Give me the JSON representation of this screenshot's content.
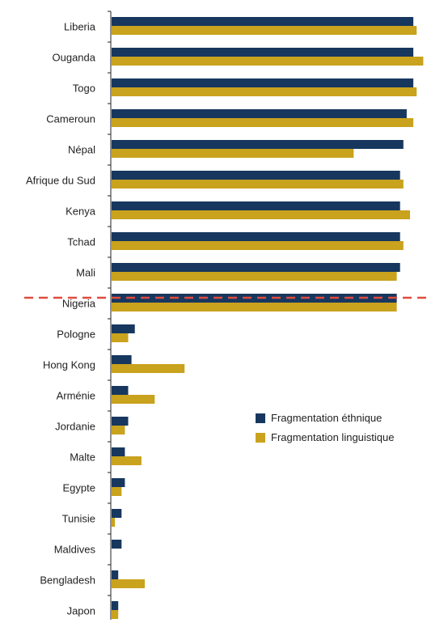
{
  "chart_data": {
    "type": "bar",
    "orientation": "horizontal",
    "categories": [
      "Liberia",
      "Ouganda",
      "Togo",
      "Cameroun",
      "Népal",
      "Afrique du Sud",
      "Kenya",
      "Tchad",
      "Mali",
      "Nigeria",
      "Pologne",
      "Hong Kong",
      "Arménie",
      "Jordanie",
      "Malte",
      "Egypte",
      "Tunisie",
      "Maldives",
      "Bengladesh",
      "Japon"
    ],
    "series": [
      {
        "name": "Fragmentation éthnique",
        "color": "#17375e",
        "values": [
          0.91,
          0.91,
          0.91,
          0.89,
          0.88,
          0.87,
          0.87,
          0.87,
          0.87,
          0.86,
          0.07,
          0.06,
          0.05,
          0.05,
          0.04,
          0.04,
          0.03,
          0.03,
          0.02,
          0.02
        ]
      },
      {
        "name": "Fragmentation linguistique",
        "color": "#c9a21e",
        "values": [
          0.92,
          0.94,
          0.92,
          0.91,
          0.73,
          0.88,
          0.9,
          0.88,
          0.86,
          0.86,
          0.05,
          0.22,
          0.13,
          0.04,
          0.09,
          0.03,
          0.01,
          0.0,
          0.1,
          0.02
        ]
      }
    ],
    "xlim": [
      0,
      1
    ],
    "separator_after": "Nigeria",
    "separator_color": "#e04b3e",
    "legend_position": "right"
  }
}
